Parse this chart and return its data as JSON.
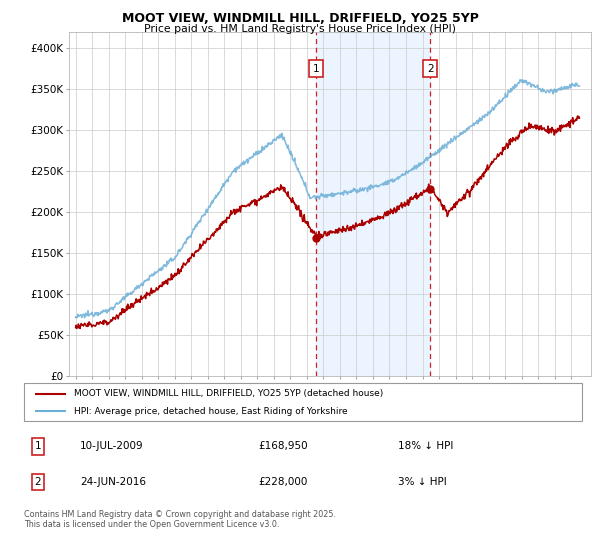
{
  "title_line1": "MOOT VIEW, WINDMILL HILL, DRIFFIELD, YO25 5YP",
  "title_line2": "Price paid vs. HM Land Registry's House Price Index (HPI)",
  "ylim": [
    0,
    420000
  ],
  "yticks": [
    0,
    50000,
    100000,
    150000,
    200000,
    250000,
    300000,
    350000,
    400000
  ],
  "ytick_labels": [
    "£0",
    "£50K",
    "£100K",
    "£150K",
    "£200K",
    "£250K",
    "£300K",
    "£350K",
    "£400K"
  ],
  "hpi_color": "#6baed6",
  "price_color": "#aa0000",
  "marker1_x": 2009.53,
  "marker1_price": 168950,
  "marker1_date": "10-JUL-2009",
  "marker1_pct": "18% ↓ HPI",
  "marker2_x": 2016.48,
  "marker2_price": 228000,
  "marker2_date": "24-JUN-2016",
  "marker2_pct": "3% ↓ HPI",
  "legend_label1": "MOOT VIEW, WINDMILL HILL, DRIFFIELD, YO25 5YP (detached house)",
  "legend_label2": "HPI: Average price, detached house, East Riding of Yorkshire",
  "footnote": "Contains HM Land Registry data © Crown copyright and database right 2025.\nThis data is licensed under the Open Government Licence v3.0.",
  "bg_highlight_color": "#ddeeff",
  "vline_color": "#cc2222",
  "marker_box_color": "#cc2222",
  "grid_color": "#cccccc",
  "spine_color": "#aaaaaa"
}
